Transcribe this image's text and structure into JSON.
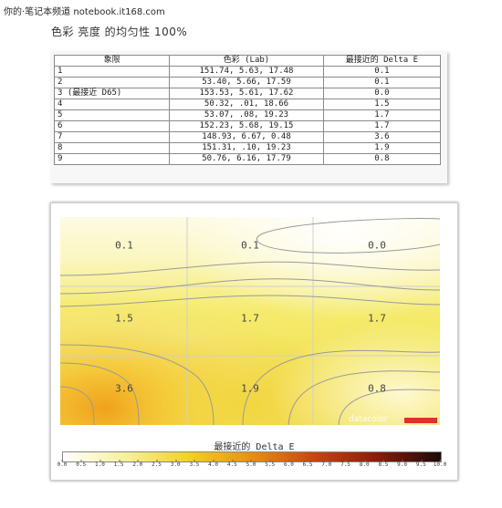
{
  "watermark": "你的·笔记本频道 notebook.it168.com",
  "heading": "色彩 亮度 的均匀性 100%",
  "table": {
    "headers": [
      "象限",
      "色彩 (Lab)",
      "最接近的 Delta E"
    ],
    "rows": [
      {
        "quadrant": "1",
        "lab": "151.74,     5.63,    17.48",
        "delta": "0.1"
      },
      {
        "quadrant": "2",
        "lab": "53.40,     5.66,    17.59",
        "delta": "0.1"
      },
      {
        "quadrant": "3 (最接近 D65)",
        "lab": "153.53,     5.61,    17.62",
        "delta": "0.0"
      },
      {
        "quadrant": "4",
        "lab": "50.32,      .01,    18.66",
        "delta": "1.5"
      },
      {
        "quadrant": "5",
        "lab": "53.07,      .08,    19.23",
        "delta": "1.7"
      },
      {
        "quadrant": "6",
        "lab": "152.23,     5.68,    19.15",
        "delta": "1.7"
      },
      {
        "quadrant": "7",
        "lab": "148.93,     6.67,     0.48",
        "delta": "3.6"
      },
      {
        "quadrant": "8",
        "lab": "151.31,      .10,    19.23",
        "delta": "1.9"
      },
      {
        "quadrant": "9",
        "lab": "50.76,     6.16,    17.79",
        "delta": "0.8"
      }
    ]
  },
  "chart_data": {
    "type": "heatmap",
    "grid": {
      "rows": 3,
      "cols": 3
    },
    "values": [
      [
        0.1,
        0.1,
        0.0
      ],
      [
        1.5,
        1.7,
        1.7
      ],
      [
        3.6,
        1.9,
        0.8
      ]
    ],
    "value_labels": [
      [
        "0.1",
        "0.1",
        "0.0"
      ],
      [
        "1.5",
        "1.7",
        "1.7"
      ],
      [
        "3.6",
        "1.9",
        "0.8"
      ]
    ],
    "legend_title": "最接近的 Delta E",
    "scale_min": 0,
    "scale_max": 10,
    "ticks": [
      "0.0",
      "0.5",
      "1.0",
      "1.5",
      "2.0",
      "2.5",
      "3.0",
      "3.5",
      "4.0",
      "4.5",
      "5.0",
      "5.5",
      "6.0",
      "6.5",
      "7.0",
      "7.5",
      "8.0",
      "8.5",
      "9.0",
      "9.5",
      "10.0"
    ],
    "colors": [
      "#ffffff",
      "#f7f09a",
      "#f2d21f",
      "#e98f10",
      "#c9440d",
      "#8b1a0b",
      "#1a0a08"
    ],
    "brand_text": "datacolor",
    "brand_color": "#e03030"
  }
}
